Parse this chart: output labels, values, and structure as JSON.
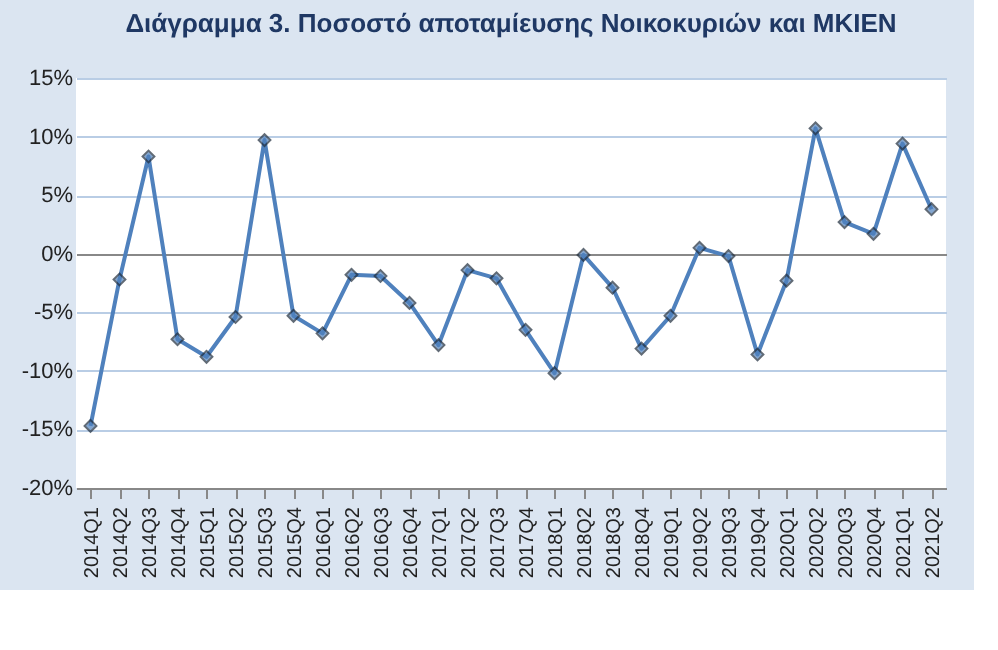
{
  "chart_data": {
    "type": "line",
    "title": "Διάγραμμα 3. Ποσοστό αποταμίευσης Νοικοκυριών και ΜΚΙΕΝ",
    "categories": [
      "2014Q1",
      "2014Q2",
      "2014Q3",
      "2014Q4",
      "2015Q1",
      "2015Q2",
      "2015Q3",
      "2015Q4",
      "2016Q1",
      "2016Q2",
      "2016Q3",
      "2016Q4",
      "2017Q1",
      "2017Q2",
      "2017Q3",
      "2017Q4",
      "2018Q1",
      "2018Q2",
      "2018Q3",
      "2018Q4",
      "2019Q1",
      "2019Q2",
      "2019Q3",
      "2019Q4",
      "2020Q1",
      "2020Q2",
      "2020Q3",
      "2020Q4",
      "2021Q1",
      "2021Q2"
    ],
    "series": [
      {
        "color": "#4f81bd",
        "values": [
          -14.7,
          -2.2,
          8.3,
          -7.3,
          -8.8,
          -5.4,
          9.7,
          -5.3,
          -6.8,
          -1.8,
          -1.9,
          -4.2,
          -7.8,
          -1.4,
          -2.1,
          -6.5,
          -10.2,
          -0.1,
          -2.9,
          -8.1,
          -5.3,
          0.5,
          -0.2,
          -8.6,
          -2.3,
          10.7,
          2.7,
          1.7,
          9.4,
          3.8
        ]
      }
    ],
    "ylim": [
      -20,
      15
    ],
    "yticks": [
      {
        "value": -20,
        "label": "-20%"
      },
      {
        "value": -15,
        "label": "-15%"
      },
      {
        "value": -10,
        "label": "-10%"
      },
      {
        "value": -5,
        "label": "-5%"
      },
      {
        "value": 0,
        "label": "0%"
      },
      {
        "value": 5,
        "label": "5%"
      },
      {
        "value": 10,
        "label": "10%"
      },
      {
        "value": 15,
        "label": "15%"
      }
    ],
    "grid": "y",
    "marker": "diamond",
    "line_style": "solid",
    "legend": false
  }
}
